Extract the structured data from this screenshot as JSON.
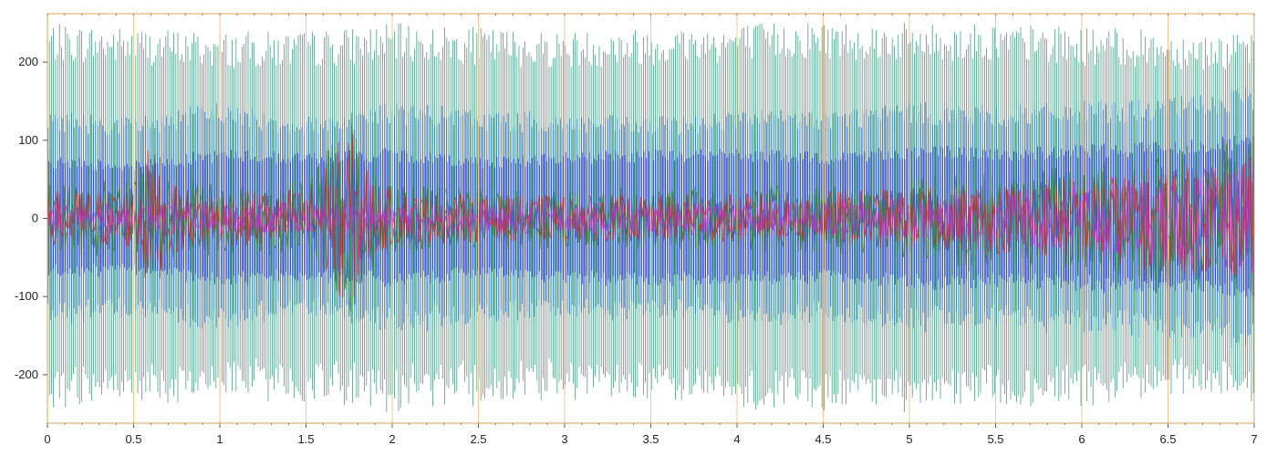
{
  "chart_data": {
    "type": "line",
    "title": "",
    "xlabel": "",
    "ylabel": "",
    "xlim": [
      0,
      7
    ],
    "ylim": [
      -262,
      262
    ],
    "x_ticks": [
      {
        "v": 0,
        "label": "0"
      },
      {
        "v": 0.5,
        "label": "0.5"
      },
      {
        "v": 1,
        "label": "1"
      },
      {
        "v": 1.5,
        "label": "1.5"
      },
      {
        "v": 2,
        "label": "2"
      },
      {
        "v": 2.5,
        "label": "2.5"
      },
      {
        "v": 3,
        "label": "3"
      },
      {
        "v": 3.5,
        "label": "3.5"
      },
      {
        "v": 4,
        "label": "4"
      },
      {
        "v": 4.5,
        "label": "4.5"
      },
      {
        "v": 5,
        "label": "5"
      },
      {
        "v": 5.5,
        "label": "5.5"
      },
      {
        "v": 6,
        "label": "6"
      },
      {
        "v": 6.5,
        "label": "6.5"
      },
      {
        "v": 7,
        "label": "7"
      }
    ],
    "y_ticks": [
      {
        "v": 200,
        "label": "200"
      },
      {
        "v": 100,
        "label": "100"
      },
      {
        "v": 0,
        "label": "0"
      },
      {
        "v": -100,
        "label": "-100"
      },
      {
        "v": -200,
        "label": "-200"
      }
    ],
    "series": [
      {
        "color": "#2e8b6e",
        "style": "carrier",
        "x": [
          0,
          0.5,
          1,
          1.5,
          2,
          2.5,
          3,
          3.5,
          4,
          4.5,
          5,
          5.5,
          6,
          6.5,
          7
        ],
        "y": [
          250,
          245,
          240,
          240,
          250,
          245,
          240,
          245,
          250,
          255,
          250,
          250,
          245,
          240,
          235
        ]
      },
      {
        "color": "#1f6fbf",
        "style": "envelope",
        "x": [
          0,
          0.5,
          1,
          1.5,
          2,
          2.5,
          3,
          3.5,
          4,
          4.5,
          5,
          5.5,
          6,
          6.5,
          7
        ],
        "y": [
          140,
          130,
          150,
          130,
          150,
          140,
          135,
          130,
          140,
          140,
          150,
          145,
          150,
          155,
          170
        ]
      },
      {
        "color": "#2222d8",
        "style": "envelope",
        "x": [
          0,
          0.5,
          1,
          1.5,
          2,
          2.5,
          3,
          3.5,
          4,
          4.5,
          5,
          5.5,
          6,
          6.5,
          7
        ],
        "y": [
          80,
          75,
          90,
          85,
          90,
          80,
          85,
          90,
          90,
          85,
          95,
          90,
          95,
          100,
          110
        ]
      },
      {
        "color": "#2e7d2e",
        "style": "band",
        "x": [
          0,
          0.5,
          0.6,
          0.7,
          1,
          1.5,
          1.75,
          1.9,
          2,
          2.5,
          3,
          3.5,
          4,
          4.5,
          5,
          5.3,
          5.5,
          6,
          6.5,
          7
        ],
        "y": [
          45,
          50,
          95,
          55,
          45,
          50,
          130,
          60,
          45,
          40,
          40,
          40,
          42,
          45,
          50,
          70,
          55,
          70,
          90,
          110
        ]
      },
      {
        "color": "#c02828",
        "style": "band",
        "x": [
          0,
          0.5,
          0.6,
          0.7,
          1,
          1.5,
          1.75,
          1.9,
          2,
          2.5,
          3,
          3.5,
          4,
          4.5,
          5,
          5.5,
          6,
          6.5,
          7
        ],
        "y": [
          35,
          40,
          100,
          45,
          35,
          40,
          120,
          50,
          35,
          30,
          30,
          30,
          32,
          35,
          40,
          45,
          55,
          70,
          80
        ]
      },
      {
        "color": "#c030c0",
        "style": "band",
        "x": [
          0,
          1,
          2,
          3,
          4,
          5,
          5.5,
          6,
          6.5,
          7
        ],
        "y": [
          20,
          20,
          20,
          20,
          22,
          25,
          35,
          50,
          60,
          75
        ]
      }
    ]
  }
}
